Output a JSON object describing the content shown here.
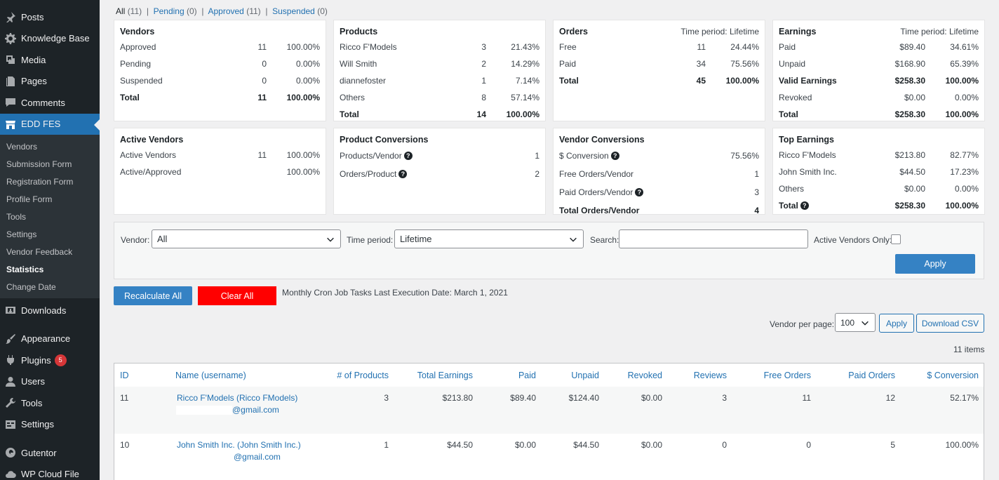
{
  "sidebar": {
    "top": [
      {
        "label": "Posts",
        "icon": "pin-icon"
      },
      {
        "label": "Knowledge Base",
        "icon": "gear-icon"
      },
      {
        "label": "Media",
        "icon": "media-icon"
      },
      {
        "label": "Pages",
        "icon": "pages-icon"
      },
      {
        "label": "Comments",
        "icon": "comment-icon"
      }
    ],
    "active": {
      "label": "EDD FES",
      "icon": "store-icon"
    },
    "submenu": [
      "Vendors",
      "Submission Form",
      "Registration Form",
      "Profile Form",
      "Tools",
      "Settings",
      "Vendor Feedback",
      "Statistics",
      "Change Date"
    ],
    "current_sub": "Statistics",
    "bottom": [
      {
        "label": "Downloads",
        "icon": "download-icon"
      },
      {
        "label": "Appearance",
        "icon": "brush-icon"
      },
      {
        "label": "Plugins",
        "icon": "plugin-icon",
        "badge": "5"
      },
      {
        "label": "Users",
        "icon": "user-icon"
      },
      {
        "label": "Tools",
        "icon": "wrench-icon"
      },
      {
        "label": "Settings",
        "icon": "settings-icon"
      },
      {
        "label": "Gutentor",
        "icon": "gutentor-icon"
      },
      {
        "label": "WP Cloud File",
        "icon": "cloud-icon"
      }
    ]
  },
  "filters_links": {
    "all": "All",
    "all_count": "(11)",
    "pending": "Pending",
    "pending_count": "(0)",
    "approved": "Approved",
    "approved_count": "(11)",
    "suspended": "Suspended",
    "suspended_count": "(0)",
    "sep": "|"
  },
  "cards": {
    "vendors": {
      "title": "Vendors",
      "rows": [
        [
          "Approved",
          "11",
          "100.00%"
        ],
        [
          "Pending",
          "0",
          "0.00%"
        ],
        [
          "Suspended",
          "0",
          "0.00%"
        ]
      ],
      "total": [
        "Total",
        "11",
        "100.00%"
      ]
    },
    "products": {
      "title": "Products",
      "rows": [
        [
          "Ricco F'Models",
          "3",
          "21.43%"
        ],
        [
          "Will Smith",
          "2",
          "14.29%"
        ],
        [
          "diannefoster",
          "1",
          "7.14%"
        ],
        [
          "Others",
          "8",
          "57.14%"
        ]
      ],
      "total": [
        "Total",
        "14",
        "100.00%"
      ]
    },
    "orders": {
      "title": "Orders",
      "period": "Time period: Lifetime",
      "rows": [
        [
          "Free",
          "11",
          "24.44%"
        ],
        [
          "Paid",
          "34",
          "75.56%"
        ]
      ],
      "total": [
        "Total",
        "45",
        "100.00%"
      ]
    },
    "earnings": {
      "title": "Earnings",
      "period": "Time period: Lifetime",
      "rows": [
        [
          "Paid",
          "$89.40",
          "34.61%"
        ],
        [
          "Unpaid",
          "$168.90",
          "65.39%"
        ]
      ],
      "valid": [
        "Valid Earnings",
        "$258.30",
        "100.00%"
      ],
      "revoked": [
        "Revoked",
        "$0.00",
        "0.00%"
      ],
      "total": [
        "Total",
        "$258.30",
        "100.00%"
      ]
    },
    "active_vendors": {
      "title": "Active Vendors",
      "rows": [
        [
          "Active Vendors",
          "11",
          "100.00%"
        ],
        [
          "Active/Approved",
          "",
          "100.00%"
        ]
      ]
    },
    "product_conversions": {
      "title": "Product Conversions",
      "rows": [
        [
          "Products/Vendor",
          "1"
        ],
        [
          "Orders/Product",
          "2"
        ]
      ]
    },
    "vendor_conversions": {
      "title": "Vendor Conversions",
      "rows": [
        [
          "$ Conversion",
          "75.56%"
        ],
        [
          "Free Orders/Vendor",
          "1"
        ],
        [
          "Paid Orders/Vendor",
          "3"
        ]
      ],
      "total": [
        "Total Orders/Vendor",
        "4"
      ]
    },
    "top_earnings": {
      "title": "Top Earnings",
      "rows": [
        [
          "Ricco F'Models",
          "$213.80",
          "82.77%"
        ],
        [
          "John Smith Inc.",
          "$44.50",
          "17.23%"
        ],
        [
          "Others",
          "$0.00",
          "0.00%"
        ]
      ],
      "total": [
        "Total",
        "$258.30",
        "100.00%"
      ]
    }
  },
  "filter": {
    "vendor_label": "Vendor:",
    "vendor_value": "All",
    "period_label": "Time period:",
    "period_value": "Lifetime",
    "search_label": "Search:",
    "active_only_label": "Active Vendors Only:",
    "apply": "Apply"
  },
  "actions": {
    "recalc": "Recalculate All",
    "clear": "Clear All",
    "cron": "Monthly Cron Job Tasks Last Execution Date: March 1, 2021"
  },
  "pager": {
    "label": "Vendor per page:",
    "value": "100",
    "apply": "Apply",
    "csv": "Download CSV",
    "items": "11 items"
  },
  "table": {
    "headers": [
      "ID",
      "Name (username)",
      "# of Products",
      "Total Earnings",
      "Paid",
      "Unpaid",
      "Revoked",
      "Reviews",
      "Free Orders",
      "Paid Orders",
      "$ Conversion"
    ],
    "rows": [
      {
        "id": "11",
        "name": "Ricco F'Models (Ricco FModels)",
        "email": "@gmail.com",
        "products": "3",
        "total": "$213.80",
        "paid": "$89.40",
        "unpaid": "$124.40",
        "revoked": "$0.00",
        "reviews": "3",
        "free": "11",
        "paid_orders": "12",
        "conv": "52.17%"
      },
      {
        "id": "10",
        "name": "John Smith Inc. (John Smith Inc.)",
        "email": "@gmail.com",
        "products": "1",
        "total": "$44.50",
        "paid": "$0.00",
        "unpaid": "$44.50",
        "revoked": "$0.00",
        "reviews": "0",
        "free": "0",
        "paid_orders": "5",
        "conv": "100.00%"
      }
    ]
  }
}
